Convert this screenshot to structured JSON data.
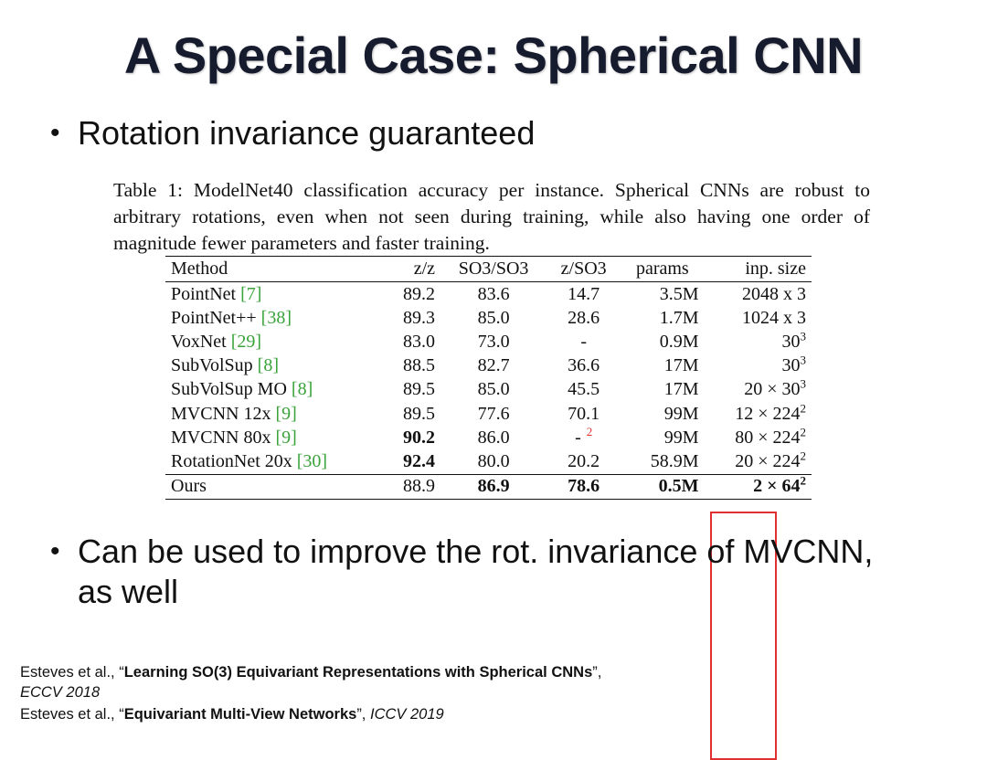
{
  "title": "A Special Case: Spherical CNN",
  "bullets": [
    "Rotation invariance guaranteed",
    "Can be used to improve the rot. invariance of MVCNN, as well"
  ],
  "bullet_symbol": "•",
  "caption": "Table 1: ModelNet40 classification accuracy per instance. Spherical CNNs are robust to arbitrary rotations, even when not seen during training, while also having one order of magnitude fewer parameters and faster training.",
  "table": {
    "headers": [
      "Method",
      "z/z",
      "SO3/SO3",
      "z/SO3",
      "params",
      "inp. size"
    ],
    "rows": [
      {
        "method": "PointNet ",
        "ref": "[7]",
        "zz": "89.2",
        "so3so3": "83.6",
        "zso3": "14.7",
        "zso3_note": "",
        "params": "3.5M",
        "inp_base": "2048 x 3",
        "inp_exp": ""
      },
      {
        "method": "PointNet++ ",
        "ref": "[38]",
        "zz": "89.3",
        "so3so3": "85.0",
        "zso3": "28.6",
        "zso3_note": "",
        "params": "1.7M",
        "inp_base": "1024 x 3",
        "inp_exp": ""
      },
      {
        "method": "VoxNet ",
        "ref": "[29]",
        "zz": "83.0",
        "so3so3": "73.0",
        "zso3": "-",
        "zso3_note": "",
        "params": "0.9M",
        "inp_base": "30",
        "inp_exp": "3"
      },
      {
        "method": "SubVolSup ",
        "ref": "[8]",
        "zz": "88.5",
        "so3so3": "82.7",
        "zso3": "36.6",
        "zso3_note": "",
        "params": "17M",
        "inp_base": "30",
        "inp_exp": "3"
      },
      {
        "method": "SubVolSup MO ",
        "ref": "[8]",
        "zz": "89.5",
        "so3so3": "85.0",
        "zso3": "45.5",
        "zso3_note": "",
        "params": "17M",
        "inp_base": "20 × 30",
        "inp_exp": "3"
      },
      {
        "method": "MVCNN 12x ",
        "ref": "[9]",
        "zz": "89.5",
        "so3so3": "77.6",
        "zso3": "70.1",
        "zso3_note": "",
        "params": "99M",
        "inp_base": "12 × 224",
        "inp_exp": "2"
      },
      {
        "method": "MVCNN 80x ",
        "ref": "[9]",
        "zz": "90.2",
        "so3so3": "86.0",
        "zso3": "-",
        "zso3_note": "2",
        "params": "99M",
        "inp_base": "80 × 224",
        "inp_exp": "2"
      },
      {
        "method": "RotationNet 20x ",
        "ref": "[30]",
        "zz": "92.4",
        "so3so3": "80.0",
        "zso3": "20.2",
        "zso3_note": "",
        "params": "58.9M",
        "inp_base": "20 × 224",
        "inp_exp": "2"
      },
      {
        "method": "Ours",
        "ref": "",
        "zz": "88.9",
        "so3so3": "86.9",
        "zso3": "78.6",
        "zso3_note": "",
        "params": "0.5M",
        "inp_base": "2 × 64",
        "inp_exp": "2"
      }
    ]
  },
  "references": [
    {
      "pre": "Esteves et al., “",
      "title": "Learning SO(3) Equivariant Representations with Spherical CNNs",
      "post": "”, ",
      "venue": "ECCV 2018"
    },
    {
      "pre": "Esteves et al., “",
      "title": "Equivariant Multi-View Networks",
      "post": "”, ",
      "venue": "ICCV 2019"
    }
  ],
  "colors": {
    "highlight_box": "#e03030",
    "reference_link": "#3aa33a",
    "title": "#161b2e"
  }
}
